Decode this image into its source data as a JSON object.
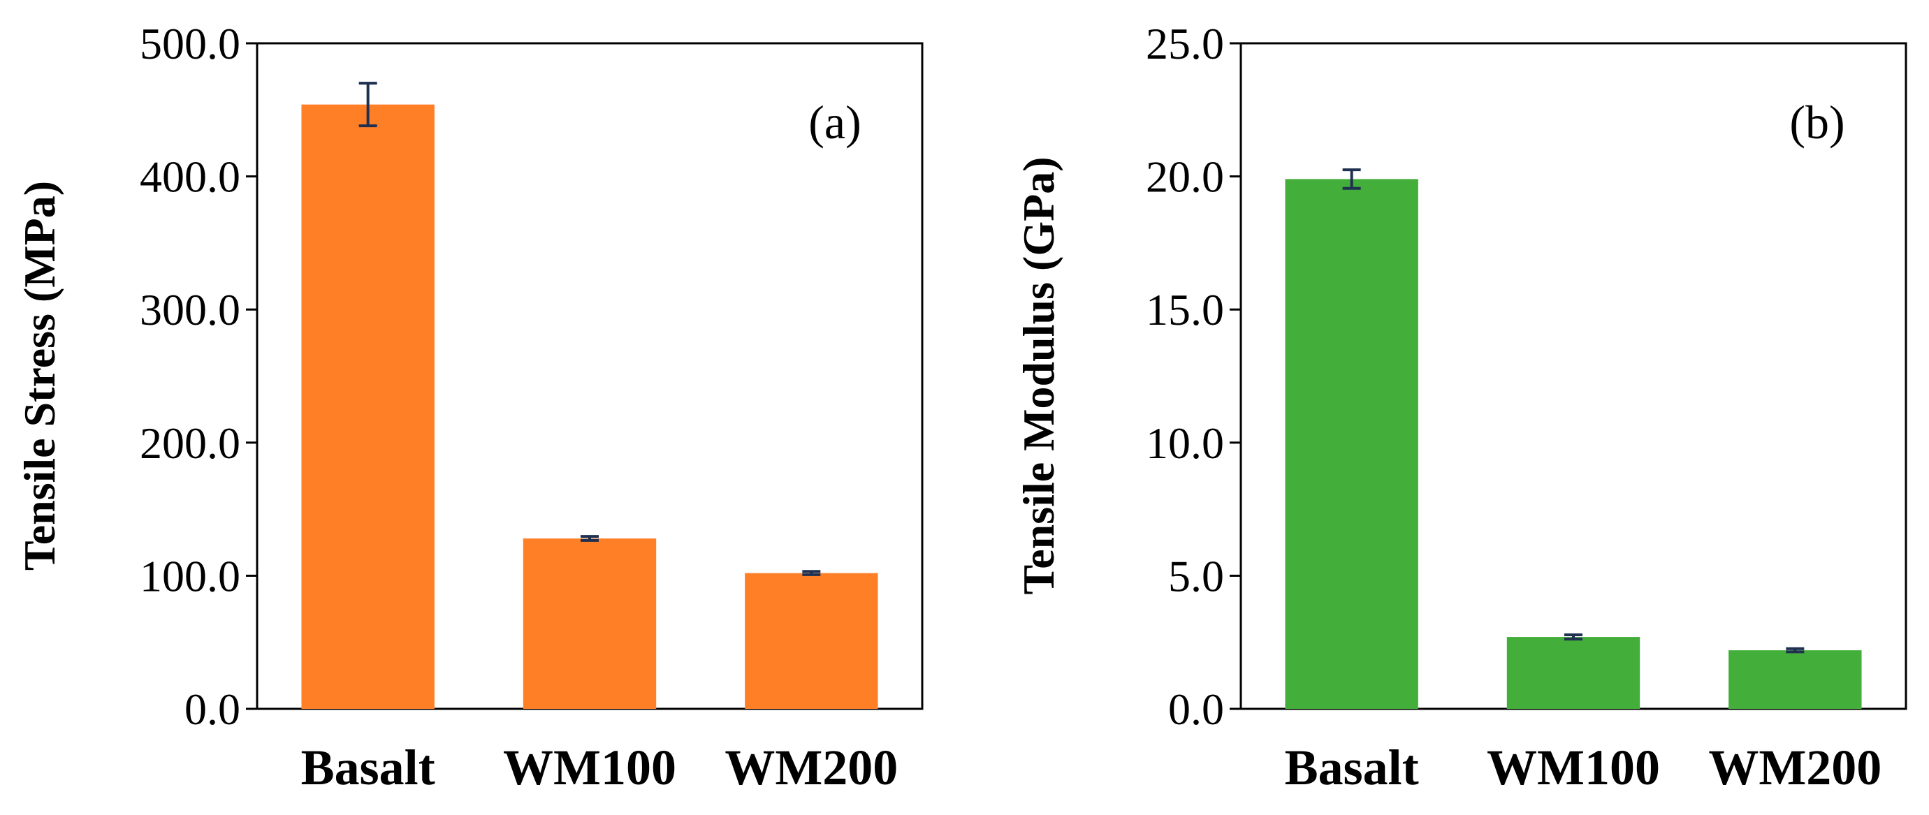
{
  "chart_data": [
    {
      "type": "bar",
      "panel_label": "(a)",
      "categories": [
        "Basalt",
        "WM100",
        "WM200"
      ],
      "values": [
        454.0,
        128.0,
        102.0
      ],
      "errors": [
        16.0,
        1.5,
        1.2
      ],
      "ylabel": "Tensile Stress (MPa)",
      "xlabel": "",
      "ylim": [
        0,
        500
      ],
      "yticks": [
        "0.0",
        "100.0",
        "200.0",
        "300.0",
        "400.0",
        "500.0"
      ],
      "bar_color": "#FF7F27",
      "error_color": "#1F3050",
      "grid": false,
      "legend": "none"
    },
    {
      "type": "bar",
      "panel_label": "(b)",
      "categories": [
        "Basalt",
        "WM100",
        "WM200"
      ],
      "values": [
        19.9,
        2.7,
        2.2
      ],
      "errors": [
        0.35,
        0.08,
        0.06
      ],
      "ylabel": "Tensile Modulus (GPa)",
      "xlabel": "",
      "ylim": [
        0,
        25
      ],
      "yticks": [
        "0.0",
        "5.0",
        "10.0",
        "15.0",
        "20.0",
        "25.0"
      ],
      "bar_color": "#43AE3A",
      "error_color": "#1F3050",
      "grid": false,
      "legend": "none"
    }
  ]
}
